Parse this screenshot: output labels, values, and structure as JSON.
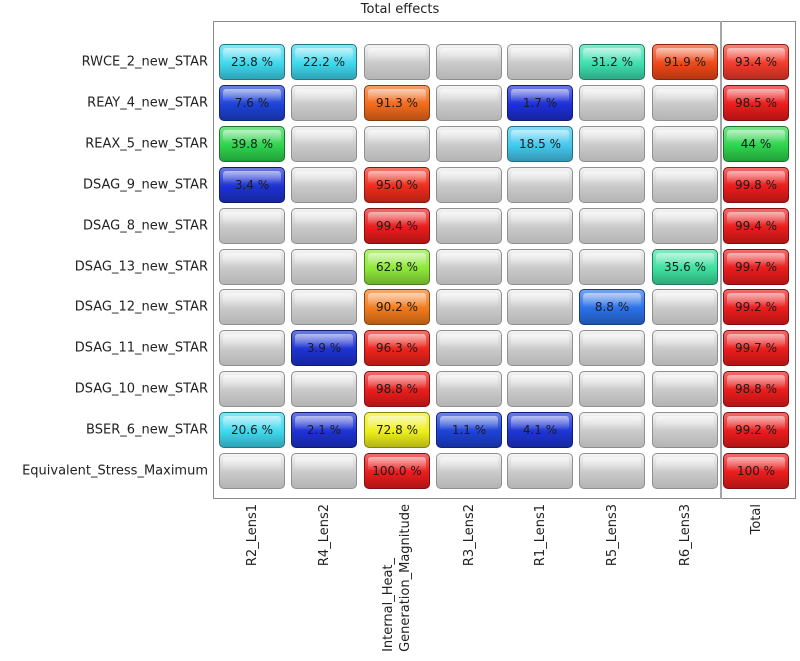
{
  "chart_data": {
    "type": "heatmap",
    "title": "Total effects",
    "rows": [
      "RWCE_2_new_STAR",
      "REAY_4_new_STAR",
      "REAX_5_new_STAR",
      "DSAG_9_new_STAR",
      "DSAG_8_new_STAR",
      "DSAG_13_new_STAR",
      "DSAG_12_new_STAR",
      "DSAG_11_new_STAR",
      "DSAG_10_new_STAR",
      "BSER_6_new_STAR",
      "Equivalent_Stress_Maximum"
    ],
    "columns": [
      "R2_Lens1",
      "R4_Lens2",
      "Internal_Heat_\nGeneration_Magnitude",
      "R3_Lens2",
      "R1_Lens1",
      "R5_Lens3",
      "R6_Lens3",
      "Total"
    ],
    "values": [
      [
        "23.8 %",
        "22.2 %",
        "",
        "",
        "",
        "31.2 %",
        "91.9 %",
        "93.4 %"
      ],
      [
        "7.6 %",
        "",
        "91.3 %",
        "",
        "1.7 %",
        "",
        "",
        "98.5 %"
      ],
      [
        "39.8 %",
        "",
        "",
        "",
        "18.5 %",
        "",
        "",
        "44 %"
      ],
      [
        "3.4 %",
        "",
        "95.0 %",
        "",
        "",
        "",
        "",
        "99.8 %"
      ],
      [
        "",
        "",
        "99.4 %",
        "",
        "",
        "",
        "",
        "99.4 %"
      ],
      [
        "",
        "",
        "62.8 %",
        "",
        "",
        "",
        "35.6 %",
        "99.7 %"
      ],
      [
        "",
        "",
        "90.2 %",
        "",
        "",
        "8.8 %",
        "",
        "99.2 %"
      ],
      [
        "",
        "3.9 %",
        "96.3 %",
        "",
        "",
        "",
        "",
        "99.7 %"
      ],
      [
        "",
        "",
        "98.8 %",
        "",
        "",
        "",
        "",
        "98.8 %"
      ],
      [
        "20.6 %",
        "2.1 %",
        "72.8 %",
        "1.1 %",
        "4.1 %",
        "",
        "",
        "99.2 %"
      ],
      [
        "",
        "",
        "100.0 %",
        "",
        "",
        "",
        "",
        "100 %"
      ]
    ],
    "colors": [
      [
        "#3fd8ee",
        "#3fd8ee",
        "",
        "",
        "",
        "#3ee0b0",
        "#f04818",
        "#f23b2c"
      ],
      [
        "#1d42d6",
        "",
        "#f26a1c",
        "",
        "#1d2fd8",
        "",
        "",
        "#ec1c1c"
      ],
      [
        "#2fd44e",
        "",
        "",
        "",
        "#45c8ee",
        "",
        "",
        "#2fd44e"
      ],
      [
        "#1d32d2",
        "",
        "#ee2c1c",
        "",
        "",
        "",
        "",
        "#ea1c1c"
      ],
      [
        "",
        "",
        "#ea1c1c",
        "",
        "",
        "",
        "",
        "#ea1c1c"
      ],
      [
        "",
        "",
        "#8ee83a",
        "",
        "",
        "",
        "#3ee0a0",
        "#ea1c1c"
      ],
      [
        "",
        "",
        "#f27a1c",
        "",
        "",
        "#2a70e8",
        "",
        "#ea1c1c"
      ],
      [
        "",
        "#1d32d2",
        "#ec241c",
        "",
        "",
        "",
        "",
        "#ea1c1c"
      ],
      [
        "",
        "",
        "#ea1c1c",
        "",
        "",
        "",
        "",
        "#ea1c1c"
      ],
      [
        "#3fd8ee",
        "#1d32d2",
        "#eeee1c",
        "#1d42d6",
        "#1d35d4",
        "",
        "",
        "#ea1c1c"
      ],
      [
        "",
        "",
        "#ea1c1c",
        "",
        "",
        "",
        "",
        "#ea1c1c"
      ]
    ]
  }
}
